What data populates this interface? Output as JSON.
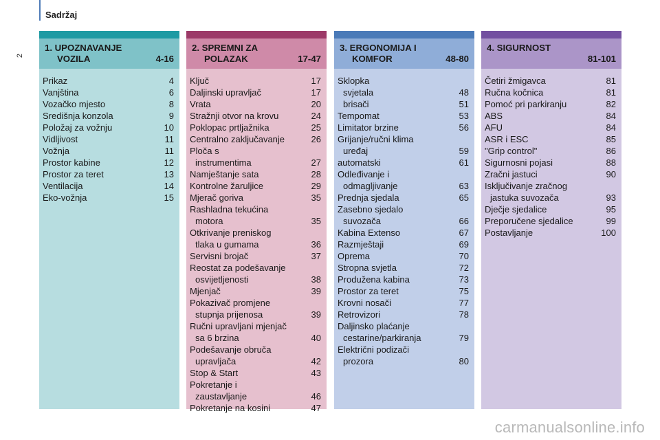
{
  "header": {
    "title": "Sadržaj",
    "page_number": "2"
  },
  "columns": [
    {
      "title_line1": "1. UPOZNAVANJE",
      "title_line2": "VOZILA",
      "title_range": "4-16",
      "entries": [
        {
          "text": "Prikaz",
          "page": "4"
        },
        {
          "text": "Vanjština",
          "page": "6"
        },
        {
          "text": "Vozačko mjesto",
          "page": "8"
        },
        {
          "text": "Središnja konzola",
          "page": "9"
        },
        {
          "text": "Položaj za vožnju",
          "page": "10"
        },
        {
          "text": "Vidljivost",
          "page": "11"
        },
        {
          "text": "Vožnja",
          "page": "11"
        },
        {
          "text": "Prostor kabine",
          "page": "12"
        },
        {
          "text": "Prostor za teret",
          "page": "13"
        },
        {
          "text": "Ventilacija",
          "page": "14"
        },
        {
          "text": "Eko-vožnja",
          "page": "15"
        }
      ]
    },
    {
      "title_line1": "2. SPREMNI ZA",
      "title_line2": "POLAZAK",
      "title_range": "17-47",
      "entries": [
        {
          "text": "Ključ",
          "page": "17"
        },
        {
          "text": "Daljinski upravljač",
          "page": "17"
        },
        {
          "text": "Vrata",
          "page": "20"
        },
        {
          "text": "Stražnji otvor na krovu",
          "page": "24"
        },
        {
          "text": "Poklopac prtljažnika",
          "page": "25"
        },
        {
          "text": "Centralno zaključavanje",
          "page": "26"
        },
        {
          "text": "Ploča s",
          "text2": "instrumentima",
          "page": "27"
        },
        {
          "text": "Namještanje sata",
          "page": "28"
        },
        {
          "text": "Kontrolne žaruljice",
          "page": "29"
        },
        {
          "text": "Mjerač goriva",
          "page": "35"
        },
        {
          "text": "Rashladna tekućina",
          "text2": "motora",
          "page": "35"
        },
        {
          "text": "Otkrivanje preniskog",
          "text2": "tlaka u gumama",
          "page": "36"
        },
        {
          "text": "Servisni brojač",
          "page": "37"
        },
        {
          "text": "Reostat za podešavanje",
          "text2": "osvijetljenosti",
          "page": "38"
        },
        {
          "text": "Mjenjač",
          "page": "39"
        },
        {
          "text": "Pokazivač promjene",
          "text2": "stupnja prijenosa",
          "page": "39"
        },
        {
          "text": "Ručni upravljani mjenjač",
          "text2": "sa 6 brzina",
          "page": "40"
        },
        {
          "text": "Podešavanje obruča",
          "text2": "upravljača",
          "page": "42"
        },
        {
          "text": "Stop & Start",
          "page": "43"
        },
        {
          "text": "Pokretanje i",
          "text2": "zaustavljanje",
          "page": "46"
        },
        {
          "text": "Pokretanje na kosini",
          "page": "47"
        }
      ]
    },
    {
      "title_line1": "3. ERGONOMIJA I",
      "title_line2": "KOMFOR",
      "title_range": "48-80",
      "entries": [
        {
          "text": "Sklopka",
          "text2": "svjetala",
          "page": "48"
        },
        {
          "text": "",
          "text2": "brisači",
          "page": "51"
        },
        {
          "text": "Tempomat",
          "page": "53"
        },
        {
          "text": "Limitator brzine",
          "page": "56"
        },
        {
          "text": "Grijanje/ručni klima",
          "text2": "uređaj",
          "page": "59"
        },
        {
          "text": "automatski",
          "page": "61"
        },
        {
          "text": "Odleđivanje i",
          "text2": "odmagljivanje",
          "page": "63"
        },
        {
          "text": "Prednja sjedala",
          "page": "65"
        },
        {
          "text": "Zasebno sjedalo",
          "text2": "suvozača",
          "page": "66"
        },
        {
          "text": "Kabina Extenso",
          "page": "67"
        },
        {
          "text": "Razmještaji",
          "page": "69"
        },
        {
          "text": "Oprema",
          "page": "70"
        },
        {
          "text": "Stropna svjetla",
          "page": "72"
        },
        {
          "text": "Produžena kabina",
          "page": "73"
        },
        {
          "text": "Prostor za teret",
          "page": "75"
        },
        {
          "text": "Krovni nosači",
          "page": "77"
        },
        {
          "text": "Retrovizori",
          "page": "78"
        },
        {
          "text": "Daljinsko plaćanje",
          "text2": "cestarine/parkiranja",
          "page": "79"
        },
        {
          "text": "Električni podizači",
          "text2": "prozora",
          "page": "80"
        }
      ]
    },
    {
      "title_line1": "4. SIGURNOST",
      "title_line2": "",
      "title_range": "81-101",
      "entries": [
        {
          "text": "Četiri žmigavca",
          "page": "81"
        },
        {
          "text": "Ručna kočnica",
          "page": "81"
        },
        {
          "text": "Pomoć pri parkiranju",
          "page": "82"
        },
        {
          "text": "ABS",
          "page": "84"
        },
        {
          "text": "AFU",
          "page": "84"
        },
        {
          "text": "ASR i ESC",
          "page": "85"
        },
        {
          "text": "\"Grip control\"",
          "page": "86"
        },
        {
          "text": "Sigurnosni pojasi",
          "page": "88"
        },
        {
          "text": "Zračni jastuci",
          "page": "90"
        },
        {
          "text": "Isključivanje zračnog",
          "text2": "jastuka suvozača",
          "page": "93"
        },
        {
          "text": "Dječje sjedalice",
          "page": "95"
        },
        {
          "text": "Preporučene sjedalice",
          "page": "99"
        },
        {
          "text": "Postavljanje",
          "page": "100"
        }
      ]
    }
  ],
  "colors": {
    "col1": [
      "#1e9aa3",
      "#7fc2c8",
      "#b7dde0"
    ],
    "col2": [
      "#9c3a68",
      "#cf8aa8",
      "#e6c0ce"
    ],
    "col3": [
      "#4a7ab8",
      "#8fadd8",
      "#c1cfe9"
    ],
    "col4": [
      "#7350a0",
      "#ab95c8",
      "#d2c8e3"
    ]
  },
  "watermark": "carmanualsonline.info"
}
